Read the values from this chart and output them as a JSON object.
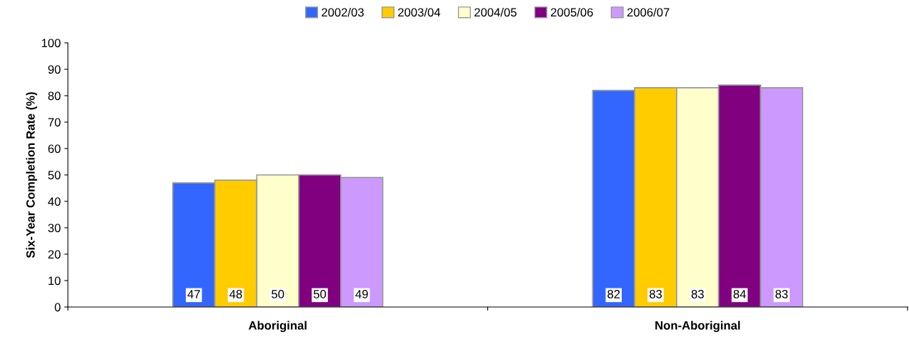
{
  "chart_data": {
    "type": "bar",
    "ylabel": "Six-Year Completion Rate (%)",
    "categories": [
      "Aboriginal",
      "Non-Aboriginal"
    ],
    "series": [
      {
        "name": "2002/03",
        "color": "#3366ff",
        "values": [
          47,
          82
        ]
      },
      {
        "name": "2003/04",
        "color": "#ffcc00",
        "values": [
          48,
          83
        ]
      },
      {
        "name": "2004/05",
        "color": "#ffffcc",
        "values": [
          50,
          83
        ]
      },
      {
        "name": "2005/06",
        "color": "#800080",
        "values": [
          50,
          84
        ]
      },
      {
        "name": "2006/07",
        "color": "#cc99ff",
        "values": [
          49,
          83
        ]
      }
    ],
    "ylim": [
      0,
      100
    ],
    "yticks": [
      0,
      10,
      20,
      30,
      40,
      50,
      60,
      70,
      80,
      90,
      100
    ],
    "data_labels": true,
    "legend": "top",
    "grid": false
  }
}
